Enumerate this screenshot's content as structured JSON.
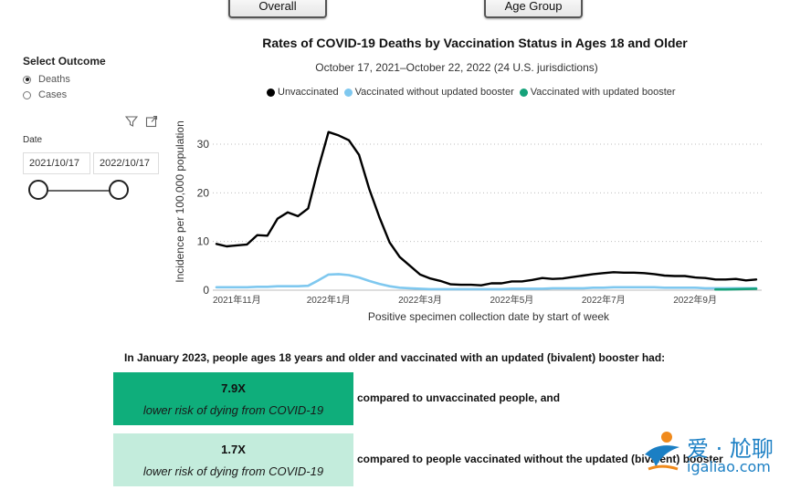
{
  "tabs": {
    "overall": "Overall",
    "age_group": "Age Group"
  },
  "sidebar": {
    "select_outcome": "Select Outcome",
    "outcomes": [
      {
        "label": "Deaths",
        "selected": true
      },
      {
        "label": "Cases",
        "selected": false
      }
    ],
    "icons": [
      "filter-icon",
      "focus-mode-icon"
    ],
    "date_label": "Date",
    "date_start": "2021/10/17",
    "date_end": "2022/10/17"
  },
  "colors": {
    "unvaccinated": "#000000",
    "no_booster": "#7fc8ef",
    "with_booster": "#16a27a",
    "accent": "#0fae7b",
    "accent_light": "#c3ecdc"
  },
  "chart_data": {
    "type": "line",
    "title": "Rates of COVID-19 Deaths by Vaccination Status in Ages 18 and Older",
    "subtitle": "October 17, 2021–October 22, 2022 (24 U.S. jurisdictions)",
    "xlabel": "Positive specimen collection date by start of week",
    "ylabel": "Incidence per 100,000 population",
    "ylim": [
      0,
      33
    ],
    "yticks": [
      0,
      10,
      20,
      30
    ],
    "xticks": [
      {
        "week": 2,
        "label": "2021年11月"
      },
      {
        "week": 11,
        "label": "2022年1月"
      },
      {
        "week": 20,
        "label": "2022年3月"
      },
      {
        "week": 29,
        "label": "2022年5月"
      },
      {
        "week": 38,
        "label": "2022年7月"
      },
      {
        "week": 47,
        "label": "2022年9月"
      }
    ],
    "series": [
      {
        "name": "Unvaccinated",
        "color": "#000000",
        "start_week": 0,
        "values": [
          9.5,
          9.0,
          9.2,
          9.4,
          11.3,
          11.2,
          14.7,
          16.0,
          15.2,
          16.8,
          25.0,
          32.5,
          31.8,
          30.8,
          27.8,
          20.8,
          15.0,
          9.8,
          6.8,
          5.0,
          3.2,
          2.4,
          1.9,
          1.2,
          1.1,
          1.1,
          1.0,
          1.4,
          1.4,
          1.8,
          1.8,
          2.1,
          2.5,
          2.3,
          2.4,
          2.7,
          3.0,
          3.3,
          3.5,
          3.7,
          3.6,
          3.6,
          3.5,
          3.3,
          3.0,
          2.9,
          2.9,
          2.6,
          2.5,
          2.2,
          2.2,
          2.3,
          2.0,
          2.2
        ]
      },
      {
        "name": "Vaccinated without updated booster",
        "color": "#7fc8ef",
        "start_week": 0,
        "values": [
          0.6,
          0.6,
          0.6,
          0.6,
          0.7,
          0.7,
          0.8,
          0.8,
          0.8,
          0.9,
          2.0,
          3.2,
          3.3,
          3.1,
          2.6,
          1.9,
          1.3,
          0.8,
          0.5,
          0.4,
          0.3,
          0.2,
          0.2,
          0.2,
          0.2,
          0.2,
          0.2,
          0.2,
          0.2,
          0.3,
          0.3,
          0.3,
          0.3,
          0.4,
          0.4,
          0.4,
          0.4,
          0.5,
          0.5,
          0.6,
          0.6,
          0.6,
          0.6,
          0.6,
          0.5,
          0.5,
          0.5,
          0.5,
          0.4,
          0.4,
          0.4,
          0.4,
          0.4,
          0.4
        ]
      },
      {
        "name": "Vaccinated with updated booster",
        "color": "#16a27a",
        "start_week": 49,
        "values": [
          0.15,
          0.15,
          0.2,
          0.25,
          0.3
        ]
      }
    ]
  },
  "summary": {
    "heading": "In January 2023, people ages 18 years and older and vaccinated with an updated (bivalent) booster had:",
    "stats": [
      {
        "value": "7.9X",
        "desc": "lower risk of dying from COVID-19",
        "compare": "compared to unvaccinated people, and"
      },
      {
        "value": "1.7X",
        "desc": "lower risk of dying from COVID-19",
        "compare": "compared to people vaccinated without the updated (bivalent) booster"
      }
    ]
  },
  "watermark": {
    "text": "爱 · 尬聊",
    "url": "igaliao.com"
  }
}
